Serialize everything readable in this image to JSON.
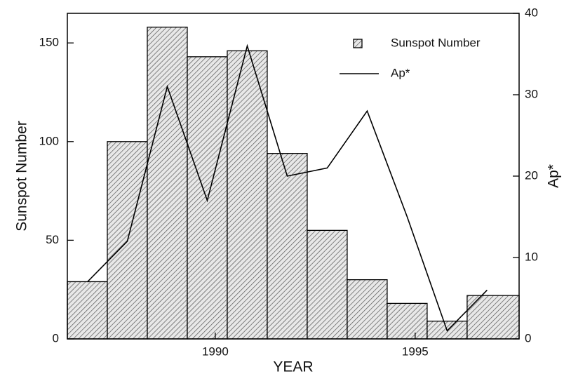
{
  "chart_data": {
    "type": "histogram",
    "xlabel": "YEAR",
    "ylabel": "Sunspot Number",
    "y2label": "Ap*",
    "series": [
      {
        "name": "Sunspot Number",
        "type": "histogram",
        "color": "#555555",
        "bins": [
          1986.3,
          1987.3,
          1988.3,
          1989.3,
          1990.3,
          1991.3,
          1992.3,
          1993.3,
          1994.3,
          1995.3,
          1996.3,
          1997.6
        ],
        "values": [
          29,
          100,
          158,
          143,
          146,
          94,
          55,
          30,
          18,
          9,
          22
        ]
      },
      {
        "name": "Ap*",
        "type": "line",
        "axis": "y2",
        "color": "#000000",
        "x": [
          1986.8,
          1987.8,
          1988.8,
          1989.8,
          1990.8,
          1991.8,
          1992.8,
          1993.8,
          1994.8,
          1995.8,
          1996.8
        ],
        "values": [
          7,
          12,
          31,
          17,
          36,
          20,
          21,
          28,
          15,
          1,
          6
        ]
      }
    ],
    "xlim": [
      1986.3,
      1997.6
    ],
    "xticks": [
      1990,
      1995
    ],
    "ylim": [
      0,
      165
    ],
    "yticks": [
      0,
      50,
      100,
      150
    ],
    "y2lim": [
      0,
      40
    ],
    "y2ticks": [
      0,
      10,
      20,
      30,
      40
    ],
    "legend": "upper right"
  }
}
